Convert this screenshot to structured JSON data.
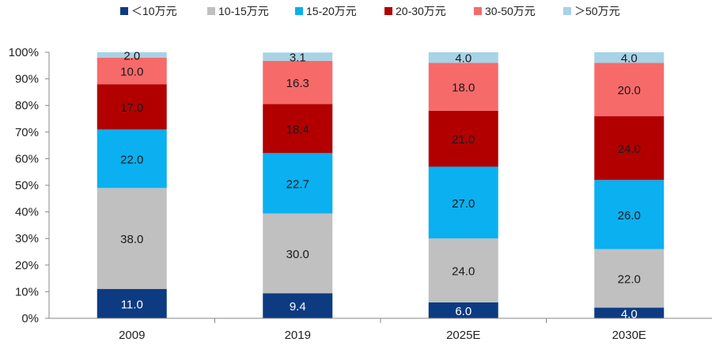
{
  "chart_data": {
    "type": "bar",
    "stacked": true,
    "categories": [
      "2009",
      "2019",
      "2025E",
      "2030E"
    ],
    "ylim": [
      0,
      100
    ],
    "yticks": [
      "0%",
      "10%",
      "20%",
      "30%",
      "40%",
      "50%",
      "60%",
      "70%",
      "80%",
      "90%",
      "100%"
    ],
    "legend_position": "top",
    "series": [
      {
        "name": "＜10万元",
        "color": "#0d3b82",
        "labels": [
          "11.0",
          "9.4",
          "6.0",
          "4.0"
        ],
        "values": [
          11.0,
          9.4,
          6.0,
          4.0
        ],
        "label_color": "#ffffff"
      },
      {
        "name": "10-15万元",
        "color": "#c0c0c0",
        "labels": [
          "38.0",
          "30.0",
          "24.0",
          "22.0"
        ],
        "values": [
          38.0,
          30.0,
          24.0,
          22.0
        ],
        "label_color": "#1a1a1a"
      },
      {
        "name": "15-20万元",
        "color": "#0ab0f0",
        "labels": [
          "22.0",
          "22.7",
          "27.0",
          "26.0"
        ],
        "values": [
          22.0,
          22.7,
          27.0,
          26.0
        ],
        "label_color": "#1a1a1a"
      },
      {
        "name": "20-30万元",
        "color": "#b20000",
        "labels": [
          "17.0",
          "18.4",
          "21.0",
          "24.0"
        ],
        "values": [
          17.0,
          18.4,
          21.0,
          24.0
        ],
        "label_color": "#1a1a1a"
      },
      {
        "name": "30-50万元",
        "color": "#f76a6a",
        "labels": [
          "10.0",
          "16.3",
          "18.0",
          "20.0"
        ],
        "values": [
          10.0,
          16.3,
          18.0,
          20.0
        ],
        "label_color": "#1a1a1a"
      },
      {
        "name": "＞50万元",
        "color": "#a7d3e6",
        "labels": [
          "2.0",
          "3.1",
          "4.0",
          "4.0"
        ],
        "values": [
          2.0,
          3.1,
          4.0,
          4.0
        ],
        "label_color": "#1a1a1a"
      }
    ]
  }
}
